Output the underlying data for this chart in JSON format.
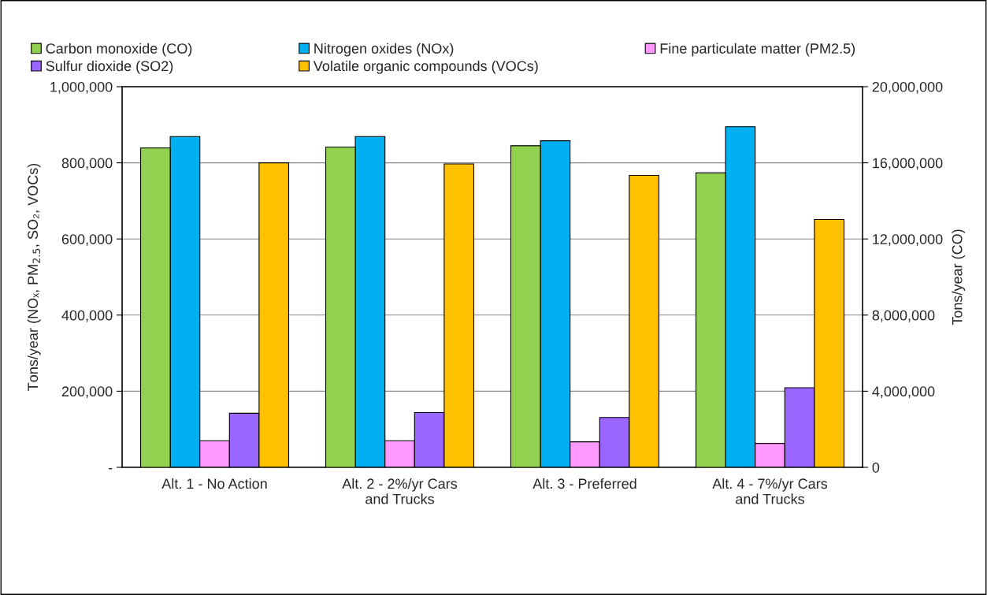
{
  "chart_data": {
    "type": "bar",
    "ylabel": "Tons/year (NOₓ, PM$_{2.5}$, SO₂, VOCs)",
    "y2label": "Tons/year (CO)",
    "categories": [
      "Alt. 1 - No Action",
      "Alt. 2 - 2%/yr Cars\nand Trucks",
      "Alt. 3 - Preferred",
      "Alt. 4 - 7%/yr Cars\nand Trucks"
    ],
    "series": [
      {
        "name": "Carbon monoxide (CO)",
        "color": "#92d050",
        "axis": "y2",
        "values": [
          16780000,
          16820000,
          16900000,
          15470000
        ]
      },
      {
        "name": "Nitrogen oxides (NOx)",
        "color": "#00b0f0",
        "values": [
          869000,
          869000,
          858000,
          895000
        ]
      },
      {
        "name": "Fine particulate matter (PM2.5)",
        "color": "#ff99ff",
        "values": [
          70000,
          70000,
          67000,
          63000
        ]
      },
      {
        "name": "Sulfur dioxide (SO2)",
        "color": "#9966ff",
        "values": [
          142000,
          144000,
          131000,
          209000
        ]
      },
      {
        "name": "Volatile organic compounds (VOCs)",
        "color": "#ffc000",
        "values": [
          800000,
          797000,
          767000,
          651000
        ]
      }
    ],
    "ylim": [
      0,
      1000000
    ],
    "yticks": [
      {
        "value": 0,
        "label": "-"
      },
      {
        "value": 200000,
        "label": "200,000"
      },
      {
        "value": 400000,
        "label": "400,000"
      },
      {
        "value": 600000,
        "label": "600,000"
      },
      {
        "value": 800000,
        "label": "800,000"
      },
      {
        "value": 1000000,
        "label": "1,000,000"
      }
    ],
    "y2lim": [
      0,
      20000000
    ],
    "y2ticks": [
      0,
      {
        "value": 4000000,
        "label": "4,000,000"
      },
      {
        "value": 8000000,
        "label": "8,000,000"
      },
      {
        "value": 12000000,
        "label": "12,000,000"
      },
      {
        "value": 16000000,
        "label": "16,000,000"
      },
      {
        "value": 20000000,
        "label": "20,000,000"
      }
    ],
    "grid": "y",
    "legend": "top"
  }
}
